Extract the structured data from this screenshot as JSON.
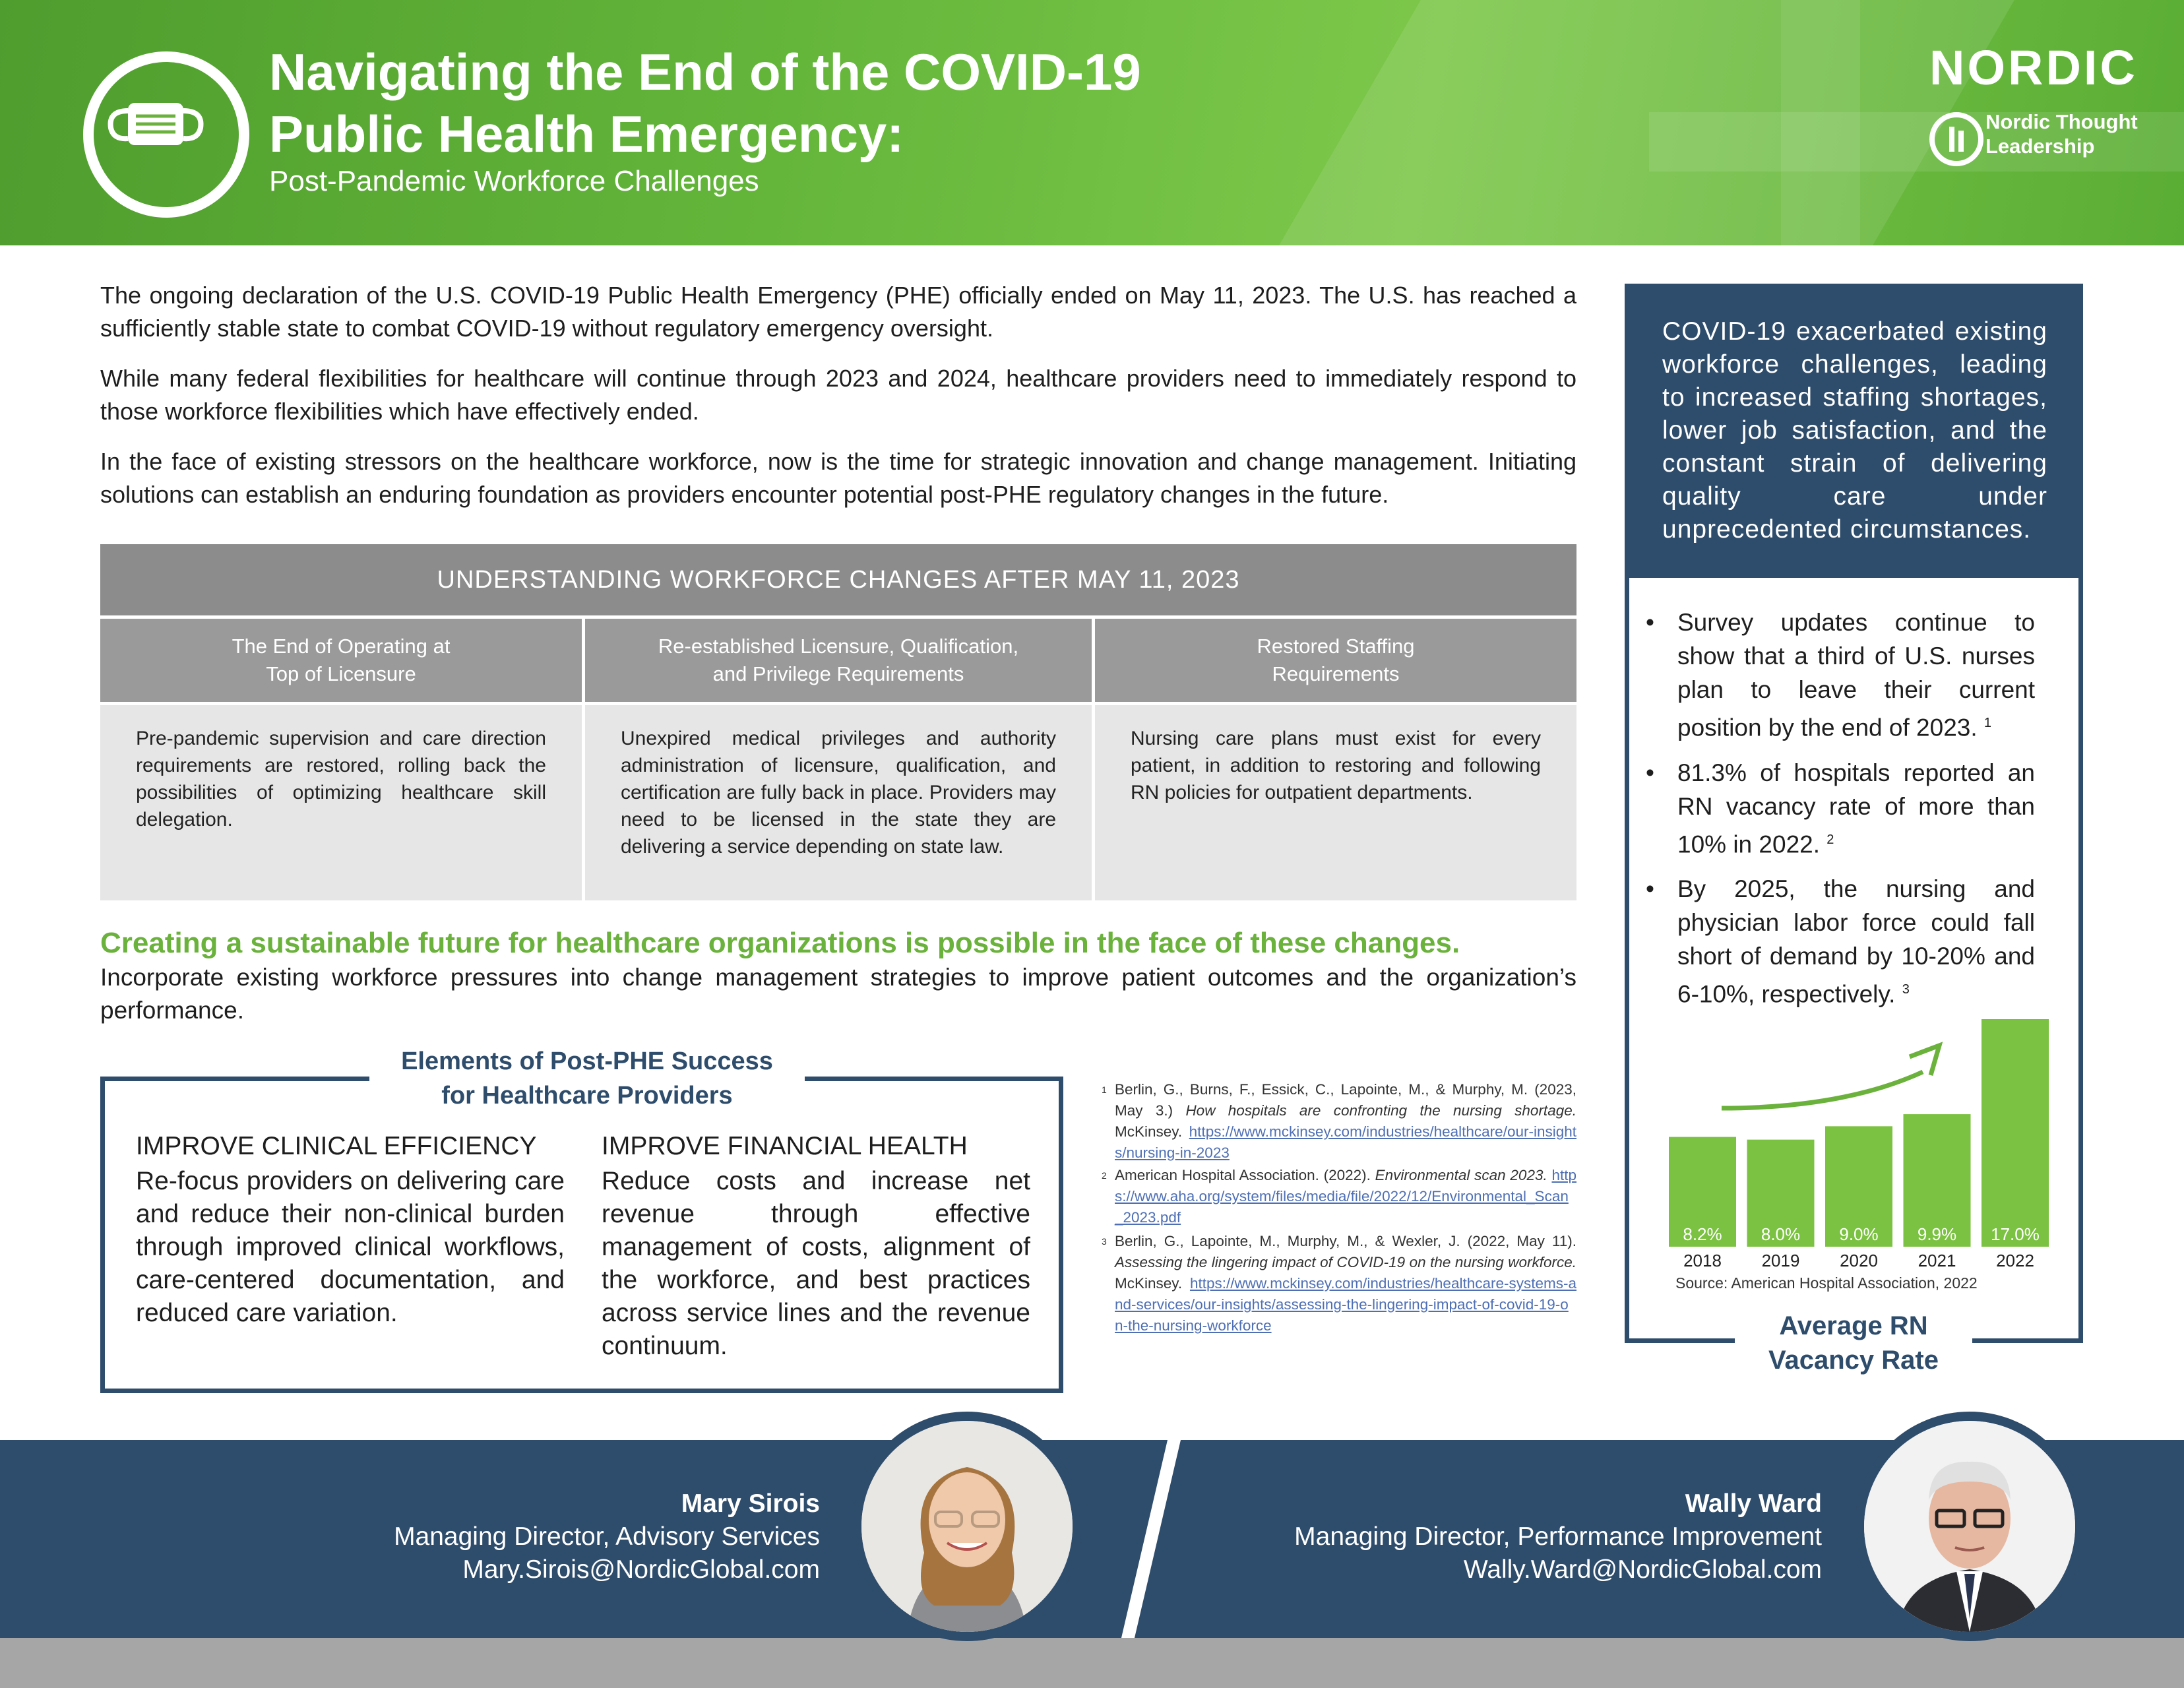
{
  "header": {
    "title_line1": "Navigating the End of the COVID-19",
    "title_line2": "Public Health Emergency:",
    "subtitle": "Post-Pandemic Workforce Challenges",
    "brand": "NORDIC",
    "brand_sub_line1": "Nordic Thought",
    "brand_sub_line2": "Leadership",
    "icon": "face-mask-icon"
  },
  "intro": [
    "The ongoing declaration of the U.S. COVID-19 Public Health Emergency (PHE) officially ended on May 11, 2023. The U.S. has reached a sufficiently stable state to combat COVID-19 without regulatory emergency oversight.",
    "While many federal flexibilities for healthcare will continue through 2023 and 2024, healthcare providers need to immediately respond to those workforce flexibilities which have effectively ended.",
    "In the face of existing stressors on the healthcare workforce, now is the time for strategic innovation and change management. Initiating solutions can establish an enduring foundation as providers encounter potential post-PHE regulatory changes in the future."
  ],
  "workforce_table": {
    "title": "UNDERSTANDING WORKFORCE CHANGES AFTER MAY 11, 2023",
    "columns": [
      {
        "head_line1": "The End of Operating at",
        "head_line2": "Top of Licensure",
        "body": "Pre-pandemic supervision and care direction requirements are restored, rolling back the possibilities of optimizing healthcare skill delegation."
      },
      {
        "head_line1": "Re-established Licensure, Qualification,",
        "head_line2": "and Privilege Requirements",
        "body": "Unexpired medical privileges and authority administration of licensure, qualification, and certification are fully back in place. Providers may need to be licensed in the state they are delivering a service depending on state law."
      },
      {
        "head_line1": "Restored Staffing",
        "head_line2": "Requirements",
        "body": "Nursing care plans must exist for every patient, in addition to restoring and following RN policies for outpatient departments."
      }
    ]
  },
  "sustainable": {
    "heading": "Creating a sustainable future for healthcare organizations is possible in the face of these changes.",
    "body": "Incorporate existing workforce pressures into change management strategies to improve patient outcomes and the organization’s performance."
  },
  "elements": {
    "title_line1": "Elements of Post-PHE Success",
    "title_line2": "for Healthcare Providers",
    "left_head": "IMPROVE CLINICAL EFFICIENCY",
    "left_body": "Re-focus providers on delivering care and reduce their non-clinical burden through improved clinical workflows, care-centered documentation, and reduced care variation.",
    "right_head": "IMPROVE FINANCIAL HEALTH",
    "right_body": "Reduce costs and increase net revenue through effective management of costs, alignment of the workforce, and best practices across service lines and the revenue continuum."
  },
  "footnotes": [
    {
      "num": "1",
      "text": "Berlin, G., Burns, F., Essick, C., Lapointe, M., & Murphy, M. (2023, May 3.) ",
      "italic": "How hospitals are confronting the nursing shortage.",
      "after": " McKinsey.",
      "link": "https://www.mckinsey.com/industries/healthcare/our-insights/nursing-in-2023"
    },
    {
      "num": "2",
      "text": "American Hospital Association. (2022). ",
      "italic": "Environmental scan 2023.",
      "after": "",
      "link": "https://www.aha.org/system/files/media/file/2022/12/Environmental_Scan_2023.pdf"
    },
    {
      "num": "3",
      "text": "Berlin, G., Lapointe, M., Murphy, M., & Wexler, J. (2022, May 11). ",
      "italic": "Assessing the lingering impact of COVID-19 on the nursing workforce.",
      "after": " McKinsey.",
      "link": "https://www.mckinsey.com/industries/healthcare-systems-and-services/our-insights/assessing-the-lingering-impact-of-covid-19-on-the-nursing-workforce"
    }
  ],
  "sidebar": {
    "quote": "COVID-19 exacerbated existing workforce challenges, leading to increased staffing shortages, lower job satisfaction, and the constant strain of delivering quality care under unprecedented circumstances.",
    "bullets": [
      {
        "text": "Survey updates continue to show that a third of U.S. nurses plan to leave their current position by the end of 2023.",
        "ref": "1"
      },
      {
        "text": "81.3% of hospitals reported an RN vacancy rate of more than 10% in 2022.",
        "ref": "2"
      },
      {
        "text": "By 2025, the nursing and physician labor force could fall short of demand by 10-20% and 6-10%, respectively.",
        "ref": "3"
      }
    ]
  },
  "chart_data": {
    "type": "bar",
    "title_line1": "Average RN",
    "title_line2": "Vacancy Rate",
    "categories": [
      "2018",
      "2019",
      "2020",
      "2021",
      "2022"
    ],
    "values": [
      8.2,
      8.0,
      9.0,
      9.9,
      17.0
    ],
    "value_labels": [
      "8.2%",
      "8.0%",
      "9.0%",
      "9.9%",
      "17.0%"
    ],
    "ylim": [
      0,
      17.0
    ],
    "source": "Source: American Hospital Association, 2022",
    "bar_color": "#7cc242",
    "arrow_color": "#6ab23c",
    "grid": false
  },
  "footer": {
    "person1": {
      "name": "Mary Sirois",
      "title": "Managing Director, Advisory Services",
      "email": "Mary.Sirois@NordicGlobal.com"
    },
    "person2": {
      "name": "Wally Ward",
      "title": "Managing Director, Performance Improvement",
      "email": "Wally.Ward@NordicGlobal.com"
    }
  },
  "colors": {
    "navy": "#2e4c6b",
    "green": "#6ab23c",
    "grey": "#8c8c8c"
  }
}
